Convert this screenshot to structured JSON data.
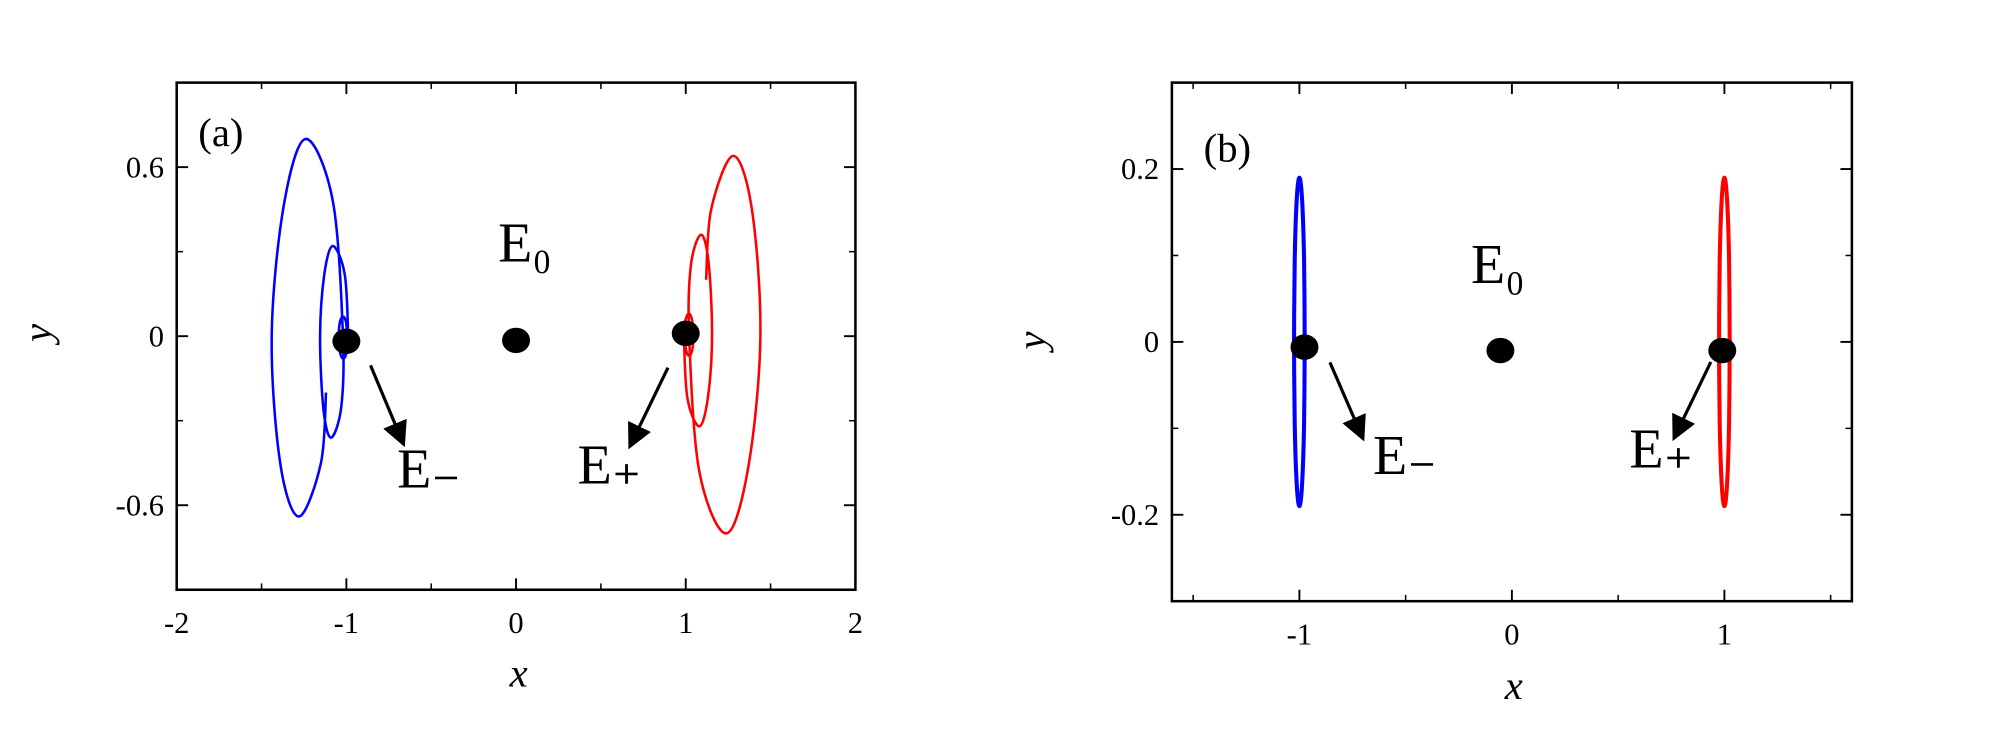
{
  "charts": [
    {
      "type": "line",
      "panel_label": "(a)",
      "xlabel": "x",
      "ylabel": "y",
      "xlim": [
        -2,
        2
      ],
      "ylim": [
        -0.9,
        0.9
      ],
      "xticks": [
        -2,
        -1,
        0,
        1,
        2
      ],
      "yticks": [
        -0.6,
        0,
        0.6
      ],
      "minor_xticks": [
        -1.5,
        -0.5,
        0.5,
        1.5
      ],
      "minor_yticks": [
        -0.3,
        0.3
      ],
      "series": [
        {
          "color": "#0000ff",
          "x": [
            -0.995,
            -1.002,
            -1.02,
            -1.038,
            -1.045,
            -1.038,
            -1.02,
            -1.0,
            -0.99,
            -1.01,
            -1.08,
            -1.13,
            -1.155,
            -1.135,
            -1.09,
            -1.03,
            -1.02,
            -1.08,
            -1.24,
            -1.37,
            -1.44,
            -1.39,
            -1.28,
            -1.15,
            -1.12
          ],
          "y": [
            0,
            0.05,
            0.07,
            0.05,
            0,
            -0.055,
            -0.08,
            -0.06,
            0,
            0.22,
            0.32,
            0.22,
            0,
            -0.26,
            -0.36,
            -0.25,
            0,
            0.48,
            0.7,
            0.46,
            0,
            -0.45,
            -0.64,
            -0.45,
            -0.2
          ]
        },
        {
          "color": "#ff0000",
          "x": [
            0.995,
            1.002,
            1.02,
            1.038,
            1.045,
            1.038,
            1.02,
            1.0,
            0.99,
            1.01,
            1.08,
            1.13,
            1.155,
            1.135,
            1.09,
            1.03,
            1.02,
            1.08,
            1.24,
            1.37,
            1.44,
            1.39,
            1.28,
            1.15,
            1.12
          ],
          "y": [
            0,
            -0.05,
            -0.07,
            -0.05,
            0,
            0.055,
            0.08,
            0.06,
            0,
            -0.22,
            -0.32,
            -0.22,
            0,
            0.26,
            0.36,
            0.25,
            0,
            -0.48,
            -0.7,
            -0.46,
            0,
            0.45,
            0.64,
            0.45,
            0.2
          ]
        }
      ],
      "points": [
        {
          "label": "E₋",
          "x": -1,
          "y": -0.018
        },
        {
          "label": "E₀",
          "x": 0,
          "y": -0.015
        },
        {
          "label": "E₊",
          "x": 1,
          "y": 0.01
        }
      ]
    },
    {
      "type": "line",
      "panel_label": "(b)",
      "xlabel": "x",
      "ylabel": "y",
      "xlim": [
        -1.6,
        1.6
      ],
      "ylim": [
        -0.3,
        0.3
      ],
      "xticks": [
        -1,
        0,
        1
      ],
      "yticks": [
        -0.2,
        0,
        0.2
      ],
      "minor_xticks": [
        -1.5,
        -0.5,
        0.5,
        1.5
      ],
      "minor_yticks": [
        -0.3,
        -0.1,
        0.1,
        0.3
      ],
      "series": [
        {
          "color": "#0000ff",
          "x": [
            -0.975,
            -0.978,
            -0.9875,
            -1,
            -1.0125,
            -1.022,
            -1.025,
            -1.022,
            -1.0125,
            -1,
            -0.9875,
            -0.978,
            -0.975
          ],
          "y": [
            0,
            0.095,
            0.165,
            0.19,
            0.165,
            0.095,
            0,
            -0.095,
            -0.165,
            -0.19,
            -0.165,
            -0.095,
            0
          ]
        },
        {
          "color": "#ff0000",
          "x": [
            1.025,
            1.022,
            1.0125,
            1,
            0.9875,
            0.978,
            0.975,
            0.978,
            0.9875,
            1,
            1.0125,
            1.022,
            1.025
          ],
          "y": [
            0,
            0.095,
            0.165,
            0.19,
            0.165,
            0.095,
            0,
            -0.095,
            -0.165,
            -0.19,
            -0.165,
            -0.095,
            0
          ]
        }
      ],
      "points": [
        {
          "label": "E₋",
          "x": -0.976,
          "y": -0.006
        },
        {
          "label": "E₀",
          "x": -0.054,
          "y": -0.01
        },
        {
          "label": "E₊",
          "x": 0.99,
          "y": -0.01
        }
      ]
    }
  ]
}
